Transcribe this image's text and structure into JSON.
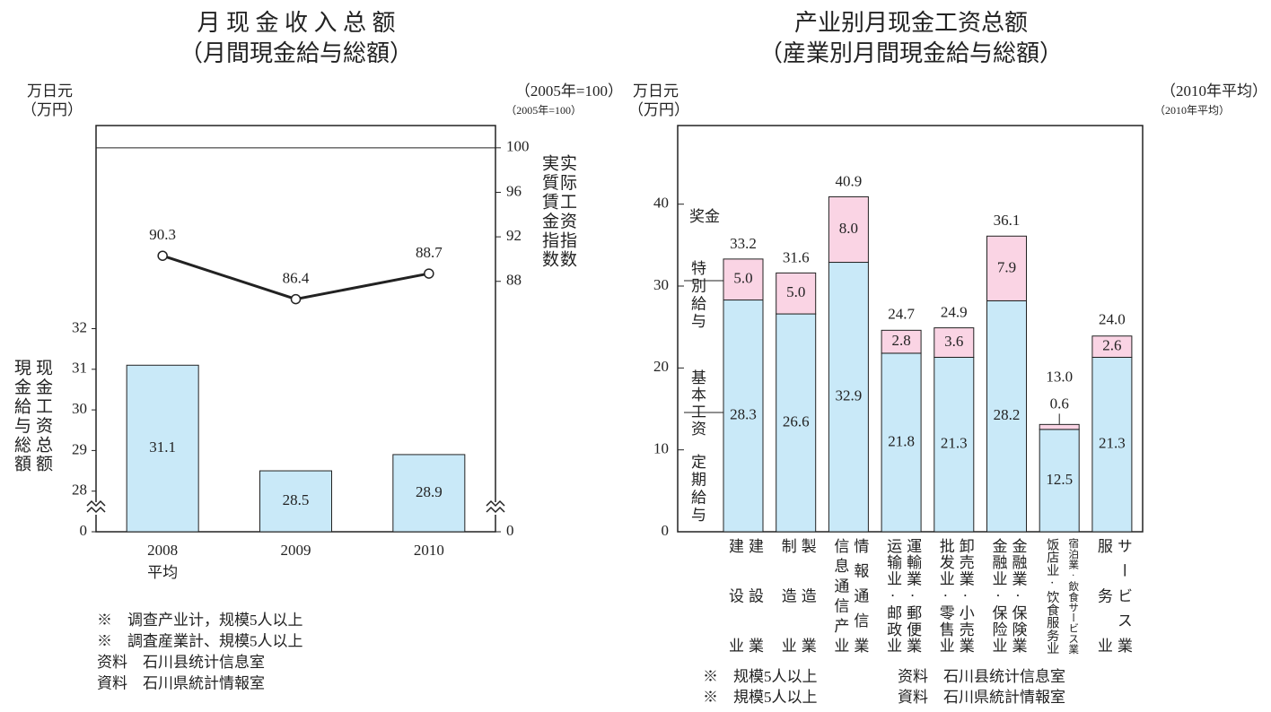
{
  "chart_data": [
    {
      "type": "bar_line",
      "title": "月 现 金 收 入 总 额",
      "subtitle": "（月間現金給与総額）",
      "y_unit": "万日元",
      "y_unit_ja": "（万円）",
      "y_label": "现金工资总额",
      "y_label_ja": "現金給与総額",
      "y2_unit": "（2005年=100）",
      "y2_unit_ja": "（2005年=100）",
      "y2_label": "实际工资指数",
      "y2_label_ja": "実質賃金指数",
      "categories": [
        "2008\n平均",
        "2009",
        "2010"
      ],
      "series": [
        {
          "type": "bar",
          "color": "#c9e9f8",
          "values": [
            31.1,
            28.5,
            28.9
          ]
        },
        {
          "type": "line",
          "axis": "y2",
          "color": "#222222",
          "values": [
            90.3,
            86.4,
            88.7
          ]
        }
      ],
      "ylim": [
        0,
        37
      ],
      "ybreak": [
        0,
        27
      ],
      "yticks": [
        0,
        28,
        29,
        30,
        31,
        32
      ],
      "y2lim": [
        0,
        102
      ],
      "y2break": [
        0,
        65.5
      ],
      "y2ticks": [
        0,
        88,
        92,
        96,
        100
      ],
      "reference_line": 100,
      "notes": [
        "※　调查产业计，规模5人以上",
        "※　調査産業計、規模5人以上",
        "资料　石川县统计信息室",
        "資料　石川県統計情報室"
      ]
    },
    {
      "type": "stacked_bar",
      "title": "产业别月现金工资总额",
      "subtitle": "（産業別月間現金給与総額）",
      "y_unit": "万日元",
      "y_unit_ja": "（万円）",
      "period": "（2010年平均）",
      "period_ja": "（2010年平均）",
      "categories": [
        "建设业",
        "制造业",
        "信息通信产业",
        "运输业·邮政业",
        "批发业·零售业",
        "金融业·保险业",
        "饭店业·饮食服务业",
        "服务业"
      ],
      "categories_ja": [
        "建設業",
        "製造業",
        "情報通信業",
        "運輸業·郵便業",
        "卸売業·小売業",
        "金融業·保険業",
        "宿泊業·飲食サービス業",
        "サービス業"
      ],
      "series": [
        {
          "name": "基本工资",
          "name_ja": "定期給与",
          "color": "#c9e9f8",
          "values": [
            28.3,
            26.6,
            32.9,
            21.8,
            21.3,
            28.2,
            12.5,
            21.3
          ],
          "value_labels": [
            "28.3",
            "26.6",
            "32.9",
            "21.8",
            "21.3",
            "28.2",
            "12.5",
            "21.3"
          ]
        },
        {
          "name": "奖金",
          "name_ja": "特別給与",
          "color": "#fad4e4",
          "values": [
            5.0,
            5.0,
            8.0,
            2.8,
            3.6,
            7.9,
            0.6,
            2.6
          ],
          "value_labels": [
            "5.0",
            "5.0",
            "8.0",
            "2.8",
            "3.6",
            "7.9",
            "0.6",
            "2.6"
          ]
        }
      ],
      "totals": [
        33.2,
        31.6,
        40.9,
        24.7,
        24.9,
        36.1,
        13.0,
        24.0
      ],
      "total_labels": [
        "33.2",
        "31.6",
        "40.9",
        "24.7",
        "24.9",
        "36.1",
        "13.0",
        "24.0"
      ],
      "ylim": [
        0,
        49.6
      ],
      "yticks": [
        0,
        10,
        20,
        30,
        40
      ],
      "notes": [
        "※　规模5人以上",
        "资料　石川县统计信息室",
        "※　規模5人以上",
        "資料　石川県統計情報室"
      ]
    }
  ]
}
